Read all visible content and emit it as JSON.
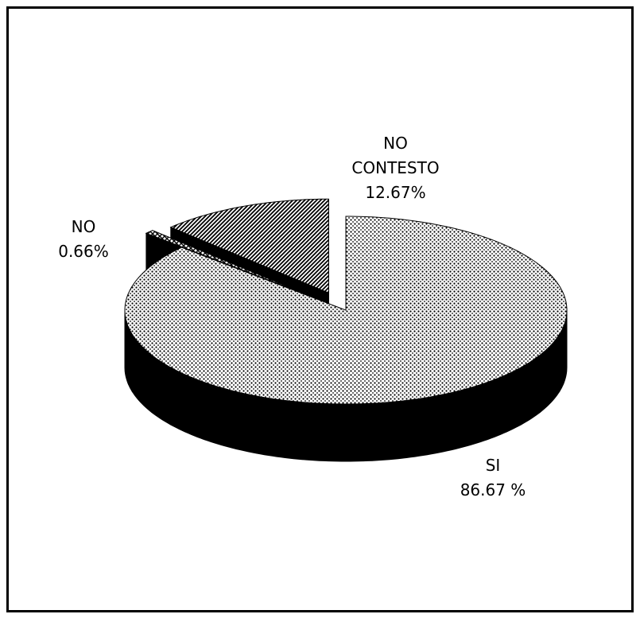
{
  "chart_data": {
    "type": "pie3d",
    "categories": [
      "SI",
      "NO",
      "NO CONTESTO"
    ],
    "values": [
      86.67,
      0.66,
      12.67
    ],
    "value_labels": [
      "86.67 %",
      "0.66%",
      "12.67%"
    ],
    "patterns": [
      "dots",
      "crosshatch",
      "diagonal"
    ],
    "side_color": "#000000"
  }
}
